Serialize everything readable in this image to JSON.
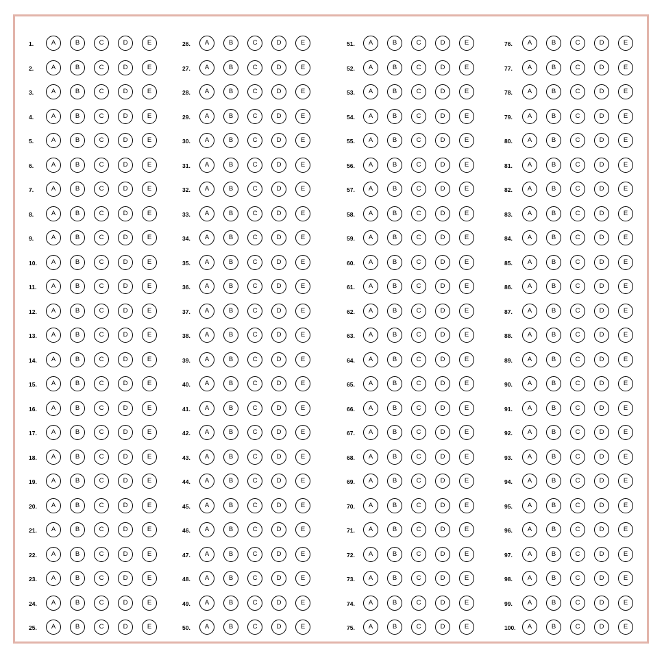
{
  "options": [
    "A",
    "B",
    "C",
    "D",
    "E"
  ],
  "columns": [
    {
      "questions": [
        "1.",
        "2.",
        "3.",
        "4.",
        "5.",
        "6.",
        "7.",
        "8.",
        "9.",
        "10.",
        "11.",
        "12.",
        "13.",
        "14.",
        "15.",
        "16.",
        "17.",
        "18.",
        "19.",
        "20.",
        "21.",
        "22.",
        "23.",
        "24.",
        "25."
      ]
    },
    {
      "questions": [
        "26.",
        "27.",
        "28.",
        "29.",
        "30.",
        "31.",
        "32.",
        "33.",
        "34.",
        "35.",
        "36.",
        "37.",
        "38.",
        "39.",
        "40.",
        "41.",
        "42.",
        "43.",
        "44.",
        "45.",
        "46.",
        "47.",
        "48.",
        "49.",
        "50."
      ]
    },
    {
      "questions": [
        "51.",
        "52.",
        "53.",
        "54.",
        "55.",
        "56.",
        "57.",
        "58.",
        "59.",
        "60.",
        "61.",
        "62.",
        "63.",
        "64.",
        "65.",
        "66.",
        "67.",
        "68.",
        "69.",
        "70.",
        "71.",
        "72.",
        "73.",
        "74.",
        "75."
      ]
    },
    {
      "questions": [
        "76.",
        "77.",
        "78.",
        "79.",
        "80.",
        "81.",
        "82.",
        "83.",
        "84.",
        "85.",
        "86.",
        "87.",
        "88.",
        "89.",
        "90.",
        "91.",
        "92.",
        "93.",
        "94.",
        "95.",
        "96.",
        "97.",
        "98.",
        "99.",
        "100."
      ]
    }
  ],
  "colors": {
    "border": "#e2b4aa",
    "ink": "#000000",
    "background": "#ffffff"
  }
}
